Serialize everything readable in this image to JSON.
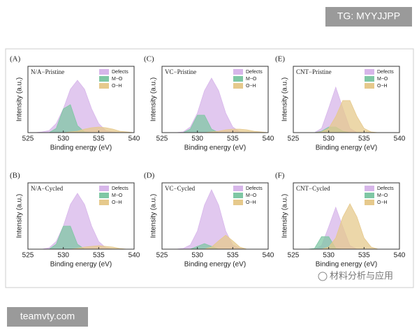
{
  "watermarks": {
    "top": "TG: MYYJJPP",
    "bottom": "teamvty.com",
    "corner": "材料分析与应用"
  },
  "chart_data": [
    {
      "type": "area",
      "title": "(A)",
      "subtitle": "N/A−Pristine",
      "xlabel": "Binding energy (eV)",
      "ylabel": "Intensity (a.u.)",
      "x": [
        525,
        526,
        527,
        528,
        529,
        530,
        531,
        532,
        533,
        534,
        535,
        536,
        537,
        538,
        539,
        540
      ],
      "xlim": [
        525,
        540
      ],
      "xticks": [
        525,
        530,
        535,
        540
      ],
      "ylim": [
        0,
        0.95
      ],
      "series": [
        {
          "name": "Defects",
          "color": "#d7b6ea",
          "values": [
            0,
            0,
            0.01,
            0.03,
            0.13,
            0.34,
            0.62,
            0.75,
            0.62,
            0.34,
            0.13,
            0.03,
            0.01,
            0,
            0,
            0
          ]
        },
        {
          "name": "M−O",
          "color": "#7fc7a4",
          "values": [
            0,
            0,
            0,
            0,
            0.06,
            0.34,
            0.4,
            0.1,
            0.01,
            0,
            0,
            0,
            0,
            0,
            0,
            0
          ]
        },
        {
          "name": "O−H",
          "color": "#e6c98c",
          "values": [
            0,
            0,
            0,
            0,
            0,
            0,
            0.01,
            0.02,
            0.05,
            0.07,
            0.08,
            0.07,
            0.05,
            0.02,
            0.01,
            0
          ]
        }
      ]
    },
    {
      "type": "area",
      "title": "(C)",
      "subtitle": "VC−Pristine",
      "xlabel": "Binding energy (eV)",
      "ylabel": "Intensity (a.u.)",
      "x": [
        525,
        526,
        527,
        528,
        529,
        530,
        531,
        532,
        533,
        534,
        535,
        536,
        537,
        538,
        539,
        540
      ],
      "xlim": [
        525,
        540
      ],
      "xticks": [
        525,
        530,
        535,
        540
      ],
      "ylim": [
        0,
        0.95
      ],
      "series": [
        {
          "name": "Defects",
          "color": "#d7b6ea",
          "values": [
            0,
            0,
            0,
            0.01,
            0.08,
            0.28,
            0.6,
            0.78,
            0.6,
            0.28,
            0.08,
            0.01,
            0,
            0,
            0,
            0
          ]
        },
        {
          "name": "M−O",
          "color": "#7fc7a4",
          "values": [
            0,
            0,
            0,
            0,
            0.05,
            0.25,
            0.25,
            0.05,
            0,
            0,
            0,
            0,
            0,
            0,
            0,
            0
          ]
        },
        {
          "name": "O−H",
          "color": "#e6c98c",
          "values": [
            0,
            0,
            0,
            0,
            0,
            0,
            0,
            0.01,
            0.02,
            0.04,
            0.05,
            0.05,
            0.04,
            0.02,
            0.01,
            0
          ]
        }
      ]
    },
    {
      "type": "area",
      "title": "(E)",
      "subtitle": "CNT−Pristine",
      "xlabel": "Binding energy (eV)",
      "ylabel": "Intensity (a.u.)",
      "x": [
        525,
        526,
        527,
        528,
        529,
        530,
        531,
        532,
        533,
        534,
        535,
        536,
        537,
        538,
        539,
        540
      ],
      "xlim": [
        525,
        540
      ],
      "xticks": [
        525,
        530,
        535,
        540
      ],
      "ylim": [
        0,
        0.95
      ],
      "series": [
        {
          "name": "Defects",
          "color": "#d7b6ea",
          "values": [
            0,
            0,
            0,
            0,
            0.06,
            0.35,
            0.65,
            0.35,
            0.06,
            0,
            0,
            0,
            0,
            0,
            0,
            0
          ]
        },
        {
          "name": "M−O",
          "color": "#7fc7a4",
          "values": [
            0,
            0,
            0,
            0,
            0.02,
            0.08,
            0.08,
            0.02,
            0,
            0,
            0,
            0,
            0,
            0,
            0,
            0
          ]
        },
        {
          "name": "O−H",
          "color": "#e6c98c",
          "values": [
            0,
            0,
            0,
            0,
            0.01,
            0.06,
            0.23,
            0.46,
            0.46,
            0.23,
            0.06,
            0.01,
            0,
            0,
            0,
            0
          ]
        }
      ]
    },
    {
      "type": "area",
      "title": "(B)",
      "subtitle": "N/A−Cycled",
      "xlabel": "Binding energy (eV)",
      "ylabel": "Intensity (a.u.)",
      "x": [
        525,
        526,
        527,
        528,
        529,
        530,
        531,
        532,
        533,
        534,
        535,
        536,
        537,
        538,
        539,
        540
      ],
      "xlim": [
        525,
        540
      ],
      "xticks": [
        525,
        530,
        535,
        540
      ],
      "ylim": [
        0,
        0.95
      ],
      "series": [
        {
          "name": "Defects",
          "color": "#d7b6ea",
          "values": [
            0,
            0,
            0,
            0.02,
            0.11,
            0.33,
            0.64,
            0.8,
            0.64,
            0.33,
            0.11,
            0.02,
            0,
            0,
            0,
            0
          ]
        },
        {
          "name": "M−O",
          "color": "#7fc7a4",
          "values": [
            0,
            0,
            0,
            0,
            0.07,
            0.33,
            0.33,
            0.07,
            0,
            0,
            0,
            0,
            0,
            0,
            0,
            0
          ]
        },
        {
          "name": "O−H",
          "color": "#e6c98c",
          "values": [
            0,
            0,
            0,
            0,
            0,
            0,
            0,
            0.01,
            0.03,
            0.04,
            0.05,
            0.04,
            0.03,
            0.01,
            0,
            0
          ]
        }
      ]
    },
    {
      "type": "area",
      "title": "(D)",
      "subtitle": "VC−Cycled",
      "xlabel": "Binding energy (eV)",
      "ylabel": "Intensity (a.u.)",
      "x": [
        525,
        526,
        527,
        528,
        529,
        530,
        531,
        532,
        533,
        534,
        535,
        536,
        537,
        538,
        539,
        540
      ],
      "xlim": [
        525,
        540
      ],
      "xticks": [
        525,
        530,
        535,
        540
      ],
      "ylim": [
        0,
        0.95
      ],
      "series": [
        {
          "name": "Defects",
          "color": "#d7b6ea",
          "values": [
            0,
            0,
            0,
            0.01,
            0.06,
            0.26,
            0.63,
            0.85,
            0.63,
            0.26,
            0.06,
            0.01,
            0,
            0,
            0,
            0
          ]
        },
        {
          "name": "M−O",
          "color": "#7fc7a4",
          "values": [
            0,
            0,
            0,
            0,
            0,
            0.04,
            0.08,
            0.04,
            0,
            0,
            0,
            0,
            0,
            0,
            0,
            0
          ]
        },
        {
          "name": "O−H",
          "color": "#e6c98c",
          "values": [
            0,
            0,
            0,
            0,
            0,
            0,
            0,
            0.03,
            0.12,
            0.2,
            0.12,
            0.03,
            0,
            0,
            0,
            0
          ]
        }
      ]
    },
    {
      "type": "area",
      "title": "(F)",
      "subtitle": "CNT−Cycled",
      "xlabel": "Binding energy (eV)",
      "ylabel": "Intensity (a.u.)",
      "x": [
        525,
        526,
        527,
        528,
        529,
        530,
        531,
        532,
        533,
        534,
        535,
        536,
        537,
        538,
        539,
        540
      ],
      "xlim": [
        525,
        540
      ],
      "xticks": [
        525,
        530,
        535,
        540
      ],
      "ylim": [
        0,
        0.95
      ],
      "series": [
        {
          "name": "Defects",
          "color": "#d7b6ea",
          "values": [
            0,
            0,
            0,
            0,
            0.05,
            0.32,
            0.6,
            0.32,
            0.05,
            0,
            0,
            0,
            0,
            0,
            0,
            0
          ]
        },
        {
          "name": "M−O",
          "color": "#7fc7a4",
          "values": [
            0,
            0,
            0,
            0.01,
            0.18,
            0.18,
            0.01,
            0,
            0,
            0,
            0,
            0,
            0,
            0,
            0,
            0
          ]
        },
        {
          "name": "O−H",
          "color": "#e6c98c",
          "values": [
            0,
            0,
            0,
            0,
            0,
            0.03,
            0.16,
            0.46,
            0.65,
            0.46,
            0.16,
            0.03,
            0,
            0,
            0,
            0
          ]
        }
      ]
    }
  ]
}
